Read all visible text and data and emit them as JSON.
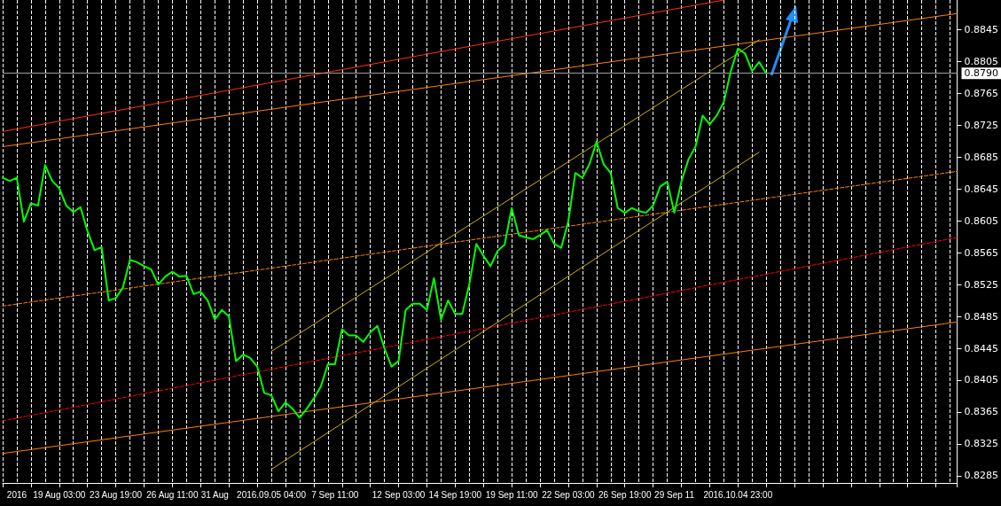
{
  "chart_data": {
    "type": "line",
    "categories": [
      null,
      null,
      "2016",
      null,
      null,
      null,
      null,
      null,
      "19 Aug 03:00",
      null,
      null,
      null,
      null,
      null,
      null,
      null,
      "23 Aug 19:00",
      null,
      null,
      null,
      null,
      null,
      null,
      null,
      "26 Aug 11:00",
      null,
      null,
      null,
      null,
      null,
      "31 Aug",
      null,
      null,
      null,
      null,
      null,
      null,
      null,
      "2016.09.05 04:00",
      null,
      null,
      null,
      null,
      null,
      null,
      null,
      null,
      "7 Sep 11:00",
      null,
      null,
      null,
      null,
      null,
      null,
      null,
      null,
      "12 Sep 03:00",
      null,
      null,
      null,
      null,
      null,
      null,
      null,
      "14 Sep 19:00",
      null,
      null,
      null,
      null,
      null,
      null,
      null,
      "19 Sep 11:00",
      null,
      null,
      null,
      null,
      null,
      null,
      null,
      "22 Sep 03:00",
      null,
      null,
      null,
      null,
      null,
      null,
      null,
      "26 Sep 19:00",
      null,
      null,
      null,
      null,
      null,
      null,
      "29 Sep 11",
      null,
      null,
      null,
      null,
      null,
      null,
      null,
      null,
      "2016.10.04 23:00",
      null,
      null,
      null,
      null,
      null,
      null,
      null,
      null,
      null,
      null,
      null,
      null,
      null,
      null,
      null,
      null,
      null,
      null,
      null,
      null,
      null,
      null,
      null,
      null,
      null,
      null,
      null,
      null,
      null,
      null,
      null
    ],
    "series": [
      {
        "color": "#00ff00",
        "line_style": "solid",
        "values": [
          0.8659,
          0.8655,
          0.8659,
          0.8604,
          0.8627,
          0.8624,
          0.8675,
          0.8655,
          0.8646,
          0.8624,
          0.8616,
          0.8622,
          0.8592,
          0.8568,
          0.8572,
          0.8505,
          0.8508,
          0.8521,
          0.8556,
          0.8553,
          0.8548,
          0.8544,
          0.8525,
          0.8535,
          0.8541,
          0.8535,
          0.8536,
          0.8513,
          0.8516,
          0.8505,
          0.8481,
          0.8493,
          0.8485,
          0.8429,
          0.8437,
          0.8433,
          0.8422,
          0.8389,
          0.8386,
          0.8366,
          0.8377,
          0.8369,
          0.8358,
          0.8369,
          0.8382,
          0.8397,
          0.8425,
          0.8425,
          0.8469,
          0.8461,
          0.8461,
          0.8453,
          0.8465,
          0.8473,
          0.8445,
          0.8422,
          0.8429,
          0.8493,
          0.8501,
          0.8501,
          0.8493,
          0.8533,
          0.8481,
          0.8505,
          0.8488,
          0.8488,
          0.8525,
          0.8576,
          0.8561,
          0.8548,
          0.8567,
          0.8575,
          0.8621,
          0.8587,
          0.8584,
          0.8582,
          0.8587,
          0.8593,
          0.8576,
          0.8571,
          0.8604,
          0.8665,
          0.8659,
          0.8676,
          0.8704,
          0.8676,
          0.8665,
          0.8621,
          0.8615,
          0.8621,
          0.8617,
          0.8615,
          0.8624,
          0.8648,
          0.8654,
          0.8615,
          0.8654,
          0.8682,
          0.8698,
          0.8737,
          0.8726,
          0.8737,
          0.8754,
          0.8793,
          0.8821,
          0.8815,
          0.8793,
          0.8804,
          0.879,
          null,
          null,
          null,
          null,
          null,
          null,
          null,
          null,
          null,
          null,
          null,
          null,
          null,
          null,
          null,
          null,
          null,
          null,
          null,
          null,
          null,
          null,
          null,
          null,
          null,
          null,
          null
        ]
      },
      {
        "color": "#ff3300",
        "line_style": "solid",
        "values": [
          0.8717,
          null,
          null,
          null,
          null,
          null,
          null,
          null,
          null,
          null,
          null,
          null,
          null,
          null,
          null,
          null,
          null,
          null,
          null,
          null,
          null,
          null,
          null,
          null,
          null,
          null,
          null,
          null,
          null,
          null,
          null,
          null,
          null,
          null,
          null,
          null,
          null,
          null,
          null,
          null,
          null,
          null,
          null,
          null,
          null,
          null,
          null,
          null,
          null,
          null,
          null,
          null,
          null,
          null,
          null,
          null,
          null,
          null,
          null,
          null,
          null,
          null,
          null,
          null,
          null,
          null,
          null,
          null,
          null,
          null,
          null,
          null,
          null,
          null,
          null,
          null,
          null,
          null,
          null,
          null,
          null,
          null,
          null,
          null,
          null,
          null,
          null,
          null,
          null,
          null,
          null,
          null,
          null,
          null,
          null,
          null,
          null,
          null,
          null,
          null,
          null,
          null,
          0.8882,
          null,
          null,
          null,
          null,
          null,
          null,
          null,
          null,
          null,
          null,
          null,
          null,
          null,
          null,
          null,
          null,
          null,
          null,
          null,
          null,
          null,
          null,
          null,
          null,
          null,
          null,
          null,
          null,
          null,
          null,
          null,
          null,
          null
        ]
      },
      {
        "color": "#ff8000",
        "line_style": "solid",
        "values": [
          0.8698,
          null,
          null,
          null,
          null,
          null,
          null,
          null,
          null,
          null,
          null,
          null,
          null,
          null,
          null,
          null,
          null,
          null,
          null,
          null,
          null,
          null,
          null,
          null,
          null,
          null,
          null,
          null,
          null,
          null,
          null,
          null,
          null,
          null,
          null,
          null,
          null,
          null,
          null,
          null,
          null,
          null,
          null,
          null,
          null,
          null,
          null,
          null,
          null,
          null,
          null,
          null,
          null,
          null,
          null,
          null,
          null,
          null,
          null,
          null,
          null,
          null,
          null,
          null,
          null,
          null,
          null,
          null,
          null,
          null,
          null,
          null,
          null,
          null,
          null,
          null,
          null,
          null,
          null,
          null,
          null,
          null,
          null,
          null,
          null,
          null,
          null,
          null,
          null,
          null,
          null,
          null,
          null,
          null,
          null,
          null,
          null,
          null,
          null,
          null,
          null,
          null,
          null,
          null,
          null,
          null,
          null,
          null,
          null,
          null,
          null,
          null,
          null,
          null,
          null,
          null,
          null,
          null,
          null,
          null,
          null,
          null,
          null,
          null,
          null,
          null,
          null,
          null,
          null,
          null,
          null,
          null,
          null,
          null,
          null,
          0.8865
        ]
      },
      {
        "color": "#ff8000",
        "line_style": "dashed",
        "values": [
          0.8498,
          null,
          null,
          null,
          null,
          null,
          null,
          null,
          null,
          null,
          null,
          null,
          null,
          null,
          null,
          null,
          null,
          null,
          null,
          null,
          null,
          null,
          null,
          null,
          null,
          null,
          null,
          null,
          null,
          null,
          null,
          null,
          null,
          null,
          null,
          null,
          null,
          null,
          null,
          null,
          null,
          null,
          null,
          null,
          null,
          null,
          null,
          null,
          null,
          null,
          null,
          null,
          null,
          null,
          null,
          null,
          null,
          null,
          null,
          null,
          null,
          null,
          null,
          null,
          null,
          null,
          null,
          null,
          null,
          null,
          null,
          null,
          null,
          null,
          null,
          null,
          null,
          null,
          null,
          null,
          null,
          null,
          null,
          null,
          null,
          null,
          null,
          null,
          null,
          null,
          null,
          null,
          null,
          null,
          null,
          null,
          null,
          null,
          null,
          null,
          null,
          null,
          null,
          null,
          null,
          null,
          null,
          null,
          null,
          null,
          null,
          null,
          null,
          null,
          null,
          null,
          null,
          null,
          null,
          null,
          null,
          null,
          null,
          null,
          null,
          null,
          null,
          null,
          null,
          null,
          null,
          null,
          null,
          null,
          null,
          0.8667
        ]
      },
      {
        "color": "#ff0000",
        "line_style": "dashed",
        "values": [
          0.8354,
          null,
          null,
          null,
          null,
          null,
          null,
          null,
          null,
          null,
          null,
          null,
          null,
          null,
          null,
          null,
          null,
          null,
          null,
          null,
          null,
          null,
          null,
          null,
          null,
          null,
          null,
          null,
          null,
          null,
          null,
          null,
          null,
          null,
          null,
          null,
          null,
          null,
          null,
          null,
          null,
          null,
          null,
          null,
          null,
          null,
          null,
          null,
          null,
          null,
          null,
          null,
          null,
          null,
          null,
          null,
          null,
          null,
          null,
          null,
          null,
          null,
          null,
          null,
          null,
          null,
          null,
          null,
          null,
          null,
          null,
          null,
          null,
          null,
          null,
          null,
          null,
          null,
          null,
          null,
          null,
          null,
          null,
          null,
          null,
          null,
          null,
          null,
          null,
          null,
          null,
          null,
          null,
          null,
          null,
          null,
          null,
          null,
          null,
          null,
          null,
          null,
          null,
          null,
          null,
          null,
          null,
          null,
          null,
          null,
          null,
          null,
          null,
          null,
          null,
          null,
          null,
          null,
          null,
          null,
          null,
          null,
          null,
          null,
          null,
          null,
          null,
          null,
          null,
          null,
          null,
          null,
          null,
          null,
          null,
          0.8584
        ]
      },
      {
        "color": "#ff8000",
        "line_style": "solid",
        "values": [
          0.8313,
          null,
          null,
          null,
          null,
          null,
          null,
          null,
          null,
          null,
          null,
          null,
          null,
          null,
          null,
          null,
          null,
          null,
          null,
          null,
          null,
          null,
          null,
          null,
          null,
          null,
          null,
          null,
          null,
          null,
          null,
          null,
          null,
          null,
          null,
          null,
          null,
          null,
          null,
          null,
          null,
          null,
          null,
          null,
          null,
          null,
          null,
          null,
          null,
          null,
          null,
          null,
          null,
          null,
          null,
          null,
          null,
          null,
          null,
          null,
          null,
          null,
          null,
          null,
          null,
          null,
          null,
          null,
          null,
          null,
          null,
          null,
          null,
          null,
          null,
          null,
          null,
          null,
          null,
          null,
          null,
          null,
          null,
          null,
          null,
          null,
          null,
          null,
          null,
          null,
          null,
          null,
          null,
          null,
          null,
          null,
          null,
          null,
          null,
          null,
          null,
          null,
          null,
          null,
          null,
          null,
          null,
          null,
          null,
          null,
          null,
          null,
          null,
          null,
          null,
          null,
          null,
          null,
          null,
          null,
          null,
          null,
          null,
          null,
          null,
          null,
          null,
          null,
          null,
          null,
          null,
          null,
          null,
          null,
          null,
          0.8478
        ]
      },
      {
        "color": "#c8b400",
        "line_style": "solid",
        "values": [
          null,
          null,
          null,
          null,
          null,
          null,
          null,
          null,
          null,
          null,
          null,
          null,
          null,
          null,
          null,
          null,
          null,
          null,
          null,
          null,
          null,
          null,
          null,
          null,
          null,
          null,
          null,
          null,
          null,
          null,
          null,
          null,
          null,
          null,
          null,
          null,
          null,
          null,
          0.8441,
          null,
          null,
          null,
          null,
          null,
          null,
          null,
          null,
          null,
          null,
          null,
          null,
          null,
          null,
          null,
          null,
          null,
          null,
          null,
          null,
          null,
          null,
          null,
          null,
          null,
          null,
          null,
          null,
          null,
          null,
          null,
          null,
          null,
          null,
          null,
          null,
          null,
          null,
          null,
          null,
          null,
          null,
          null,
          null,
          null,
          null,
          null,
          null,
          null,
          null,
          null,
          null,
          null,
          null,
          null,
          null,
          null,
          null,
          null,
          null,
          null,
          null,
          null,
          null,
          null,
          null,
          null,
          null,
          0.8832,
          null,
          null,
          null,
          null,
          null,
          null,
          null,
          null,
          null,
          null,
          null,
          null,
          null,
          null,
          null,
          null,
          null,
          null,
          null,
          null,
          null,
          null,
          null,
          null,
          null,
          null,
          null,
          null
        ]
      },
      {
        "color": "#c8b400",
        "line_style": "solid",
        "values": [
          null,
          null,
          null,
          null,
          null,
          null,
          null,
          null,
          null,
          null,
          null,
          null,
          null,
          null,
          null,
          null,
          null,
          null,
          null,
          null,
          null,
          null,
          null,
          null,
          null,
          null,
          null,
          null,
          null,
          null,
          null,
          null,
          null,
          null,
          null,
          null,
          null,
          null,
          0.8293,
          null,
          null,
          null,
          null,
          null,
          null,
          null,
          null,
          null,
          null,
          null,
          null,
          null,
          null,
          null,
          null,
          null,
          null,
          null,
          null,
          null,
          null,
          null,
          null,
          null,
          null,
          null,
          null,
          null,
          null,
          null,
          null,
          null,
          null,
          null,
          null,
          null,
          null,
          null,
          null,
          null,
          null,
          null,
          null,
          null,
          null,
          null,
          null,
          null,
          null,
          null,
          null,
          null,
          null,
          null,
          null,
          null,
          null,
          null,
          null,
          null,
          null,
          null,
          null,
          null,
          null,
          null,
          null,
          0.8691,
          null,
          null,
          null,
          null,
          null,
          null,
          null,
          null,
          null,
          null,
          null,
          null,
          null,
          null,
          null,
          null,
          null,
          null,
          null,
          null,
          null,
          null,
          null,
          null,
          null,
          null,
          null,
          null
        ]
      }
    ],
    "ylim": [
      0.8276,
      0.8882
    ],
    "yticks": [
      0.8285,
      0.8325,
      0.8365,
      0.8405,
      0.8445,
      0.8485,
      0.8525,
      0.8565,
      0.8605,
      0.8645,
      0.8685,
      0.8725,
      0.8765,
      0.8805,
      0.8845
    ],
    "grid": "x",
    "marker": "none",
    "ref_lines": [
      {
        "axis": "y",
        "value": 0.879,
        "label": "0.8790",
        "color": "#a0a0a0"
      }
    ]
  }
}
